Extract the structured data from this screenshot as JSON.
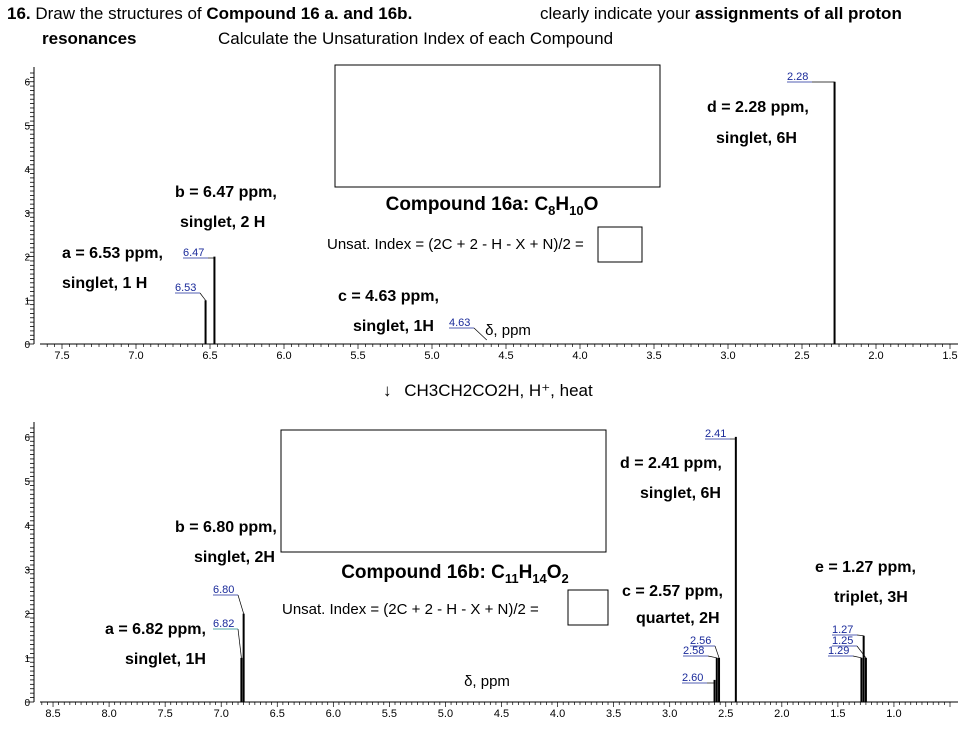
{
  "header": {
    "q_number": "16.",
    "line1_text": " Draw the structures of ",
    "line1_bold": "Compound 16 a. and 16b.",
    "right_text": "clearly indicate your ",
    "right_bold": "assignments of all proton",
    "line2_bold": "resonances",
    "line2_text": "Calculate the Unsaturation Index of each Compound"
  },
  "reaction": {
    "arrow": "↓",
    "text": "CH3CH2CO2H, H⁺, heat"
  },
  "colors": {
    "spectrum": "#000000",
    "peak_label": "#1a2a9a",
    "teal_label": "#1a8a8a"
  },
  "chart_data": [
    {
      "type": "line",
      "name": "Compound 16a",
      "title_main": "Compound 16a: C",
      "title_sub1": "8",
      "title_mid": "H",
      "title_sub2": "10",
      "title_end": "O",
      "unsat_text": "Unsat. Index = (2C + 2 - H - X + N)/2 =",
      "xlabel": "δ, ppm",
      "xlim": [
        7.75,
        1.5
      ],
      "ylim": [
        0,
        6.2
      ],
      "y_ticks": [
        0,
        1,
        2,
        3,
        4,
        5,
        6
      ],
      "x_ticks": [
        7.5,
        7.0,
        6.5,
        6.0,
        5.5,
        5.0,
        4.5,
        4.0,
        3.5,
        3.0,
        2.5,
        2.0,
        1.5
      ],
      "x_tick_labels": [
        "7.5",
        "7.0",
        "6.5",
        "6.0",
        "5.5",
        "5.0",
        "4.5",
        "4.0",
        "3.5",
        "3.0",
        "2.5",
        "2.0",
        "1.5"
      ],
      "peaks": [
        {
          "ppm": 6.53,
          "height": 1.0,
          "label": "6.53"
        },
        {
          "ppm": 6.47,
          "height": 2.0,
          "label": "6.47"
        },
        {
          "ppm": 4.63,
          "height": 0.0,
          "label": "4.63"
        },
        {
          "ppm": 2.28,
          "height": 6.0,
          "label": "2.28"
        }
      ],
      "assignments": [
        {
          "line1": "a = 6.53 ppm,",
          "line2": "singlet, 1 H"
        },
        {
          "line1": "b = 6.47 ppm,",
          "line2": "singlet, 2 H"
        },
        {
          "line1": "c = 4.63 ppm,",
          "line2": "singlet, 1H"
        },
        {
          "line1": "d = 2.28 ppm,",
          "line2": "singlet, 6H"
        }
      ]
    },
    {
      "type": "line",
      "name": "Compound 16b",
      "title_main": "Compound 16b: C",
      "title_sub1": "11",
      "title_mid": "H",
      "title_sub2": "14",
      "title_end": "O",
      "title_sub3": "2",
      "unsat_text": "Unsat. Index = (2C + 2 - H - X + N)/2 =",
      "xlabel": "δ, ppm",
      "xlim": [
        8.75,
        0.5
      ],
      "ylim": [
        0,
        6.2
      ],
      "y_ticks": [
        0,
        1,
        2,
        3,
        4,
        5,
        6
      ],
      "x_ticks": [
        8.5,
        8.0,
        7.5,
        7.0,
        6.5,
        6.0,
        5.5,
        5.0,
        4.5,
        4.0,
        3.5,
        3.0,
        2.5,
        2.0,
        1.5,
        1.0
      ],
      "x_tick_labels": [
        "8.5",
        "8.0",
        "7.5",
        "7.0",
        "6.5",
        "6.0",
        "5.5",
        "5.0",
        "4.5",
        "4.0",
        "3.5",
        "3.0",
        "2.5",
        "2.0",
        "1.5",
        "1.0"
      ],
      "peaks": [
        {
          "ppm": 6.82,
          "height": 1.0,
          "label": "6.82",
          "teal": true
        },
        {
          "ppm": 6.8,
          "height": 2.0,
          "label": "6.80"
        },
        {
          "ppm": 2.6,
          "height": 0.5,
          "label": "2.60"
        },
        {
          "ppm": 2.58,
          "height": 1.0,
          "label": "2.58"
        },
        {
          "ppm": 2.56,
          "height": 1.0,
          "label": "2.56"
        },
        {
          "ppm": 2.41,
          "height": 6.0,
          "label": "2.41"
        },
        {
          "ppm": 1.29,
          "height": 1.0,
          "label": "1.29"
        },
        {
          "ppm": 1.27,
          "height": 1.5,
          "label": "1.27"
        },
        {
          "ppm": 1.25,
          "height": 1.0,
          "label": "1.25"
        }
      ],
      "assignments": [
        {
          "line1": "a = 6.82 ppm,",
          "line2": "singlet, 1H"
        },
        {
          "line1": "b = 6.80 ppm,",
          "line2": "singlet, 2H"
        },
        {
          "line1": "c = 2.57 ppm,",
          "line2": "quartet, 2H"
        },
        {
          "line1": "d = 2.41 ppm,",
          "line2": "singlet, 6H"
        },
        {
          "line1": "e = 1.27 ppm,",
          "line2": "triplet, 3H"
        }
      ]
    }
  ]
}
